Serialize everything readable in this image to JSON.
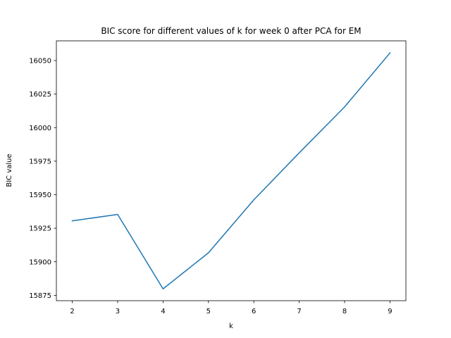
{
  "chart_data": {
    "type": "line",
    "title": "BIC score for different values of k for week 0 after PCA for EM",
    "xlabel": "k",
    "ylabel": "BIC value",
    "x": [
      2,
      3,
      4,
      5,
      6,
      7,
      8,
      9
    ],
    "series": [
      {
        "values": [
          15930.5,
          15935.3,
          15879.8,
          15906.7,
          15946.2,
          15981.2,
          16015.5,
          16055.7
        ],
        "color": "#1f77b4"
      }
    ],
    "xlim": [
      1.65,
      9.35
    ],
    "ylim": [
      15871.0,
      16064.7
    ],
    "xticks": [
      2,
      3,
      4,
      5,
      6,
      7,
      8,
      9
    ],
    "yticks": [
      15875,
      15900,
      15925,
      15950,
      15975,
      16000,
      16025,
      16050
    ],
    "grid": false,
    "legend": "none"
  }
}
